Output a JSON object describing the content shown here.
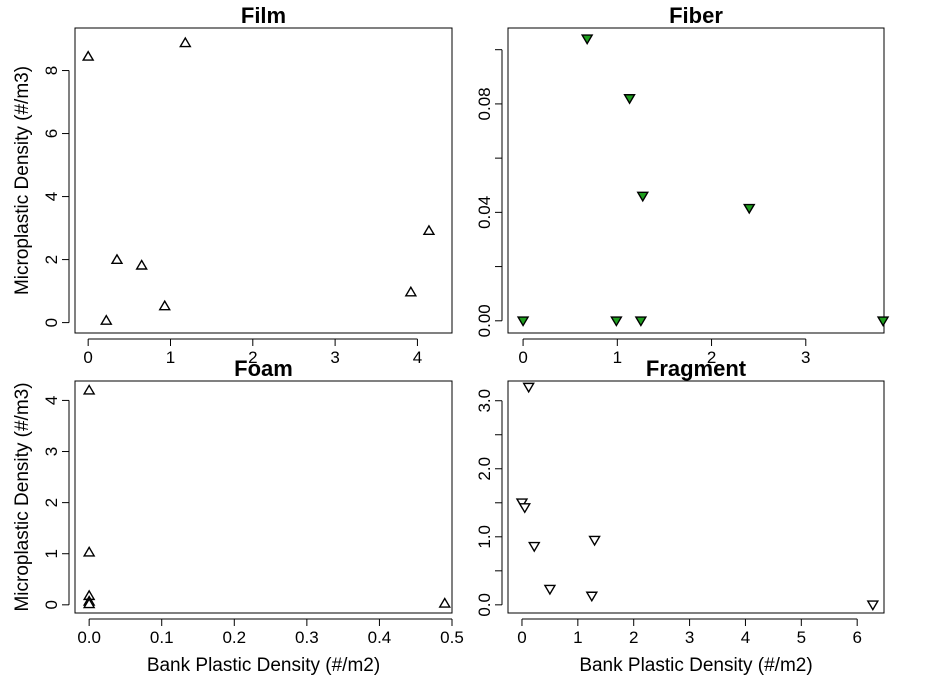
{
  "chart_data": [
    {
      "type": "scatter",
      "title": "Film",
      "ylabel": "Microplastic Density (#/m3)",
      "xlabel": "",
      "xlim": [
        -0.16,
        4.42
      ],
      "ylim": [
        -0.33,
        9.35
      ],
      "xticks": [
        0,
        1,
        2,
        3,
        4
      ],
      "xtick_labels": [
        "0",
        "1",
        "2",
        "3",
        "4"
      ],
      "yticks": [
        0,
        2,
        4,
        6,
        8
      ],
      "ytick_labels": [
        "0",
        "2",
        "4",
        "6",
        "8"
      ],
      "marker": "triangle-up",
      "marker_color": "#000000",
      "marker_fill": "#ffffff",
      "points": [
        {
          "x": 0.0,
          "y": 8.45
        },
        {
          "x": 1.18,
          "y": 8.88
        },
        {
          "x": 0.35,
          "y": 2.0
        },
        {
          "x": 0.65,
          "y": 1.82
        },
        {
          "x": 0.93,
          "y": 0.53
        },
        {
          "x": 0.22,
          "y": 0.07
        },
        {
          "x": 3.92,
          "y": 0.97
        },
        {
          "x": 4.14,
          "y": 2.92
        }
      ]
    },
    {
      "type": "scatter",
      "title": "Fiber",
      "ylabel": "",
      "xlabel": "",
      "xlim": [
        -0.16,
        3.83
      ],
      "ylim": [
        -0.0045,
        0.108
      ],
      "xticks": [
        0,
        1,
        2,
        3
      ],
      "xtick_labels": [
        "0",
        "1",
        "2",
        "3"
      ],
      "yticks": [
        0.0,
        0.04,
        0.08
      ],
      "ytick_labels": [
        "0.00",
        "0.04",
        "0.08"
      ],
      "extra_yticks": [
        0.02,
        0.06,
        0.1
      ],
      "marker": "triangle-down",
      "marker_color": "#000000",
      "marker_fill": "#1e9e1e",
      "points": [
        {
          "x": 0.0,
          "y": 0.0
        },
        {
          "x": 0.68,
          "y": 0.104
        },
        {
          "x": 1.13,
          "y": 0.082
        },
        {
          "x": 1.27,
          "y": 0.046
        },
        {
          "x": 2.4,
          "y": 0.0415
        },
        {
          "x": 0.99,
          "y": 0.0
        },
        {
          "x": 1.25,
          "y": 0.0
        },
        {
          "x": 3.82,
          "y": 0.0
        }
      ]
    },
    {
      "type": "scatter",
      "title": "Foam",
      "ylabel": "Microplastic Density (#/m3)",
      "xlabel": "Bank Plastic Density (#/m2)",
      "xlim": [
        -0.0195,
        0.5
      ],
      "ylim": [
        -0.16,
        4.38
      ],
      "xticks": [
        0,
        0.1,
        0.2,
        0.3,
        0.4,
        0.5
      ],
      "xtick_labels": [
        "0.0",
        "0.1",
        "0.2",
        "0.3",
        "0.4",
        "0.5"
      ],
      "yticks": [
        0,
        1,
        2,
        3,
        4
      ],
      "ytick_labels": [
        "0",
        "1",
        "2",
        "3",
        "4"
      ],
      "marker": "triangle-up",
      "marker_color": "#000000",
      "marker_fill": "#ffffff",
      "points": [
        {
          "x": 0.0,
          "y": 4.2
        },
        {
          "x": 0.0,
          "y": 1.03
        },
        {
          "x": 0.0,
          "y": 0.18
        },
        {
          "x": 0.0,
          "y": 0.07
        },
        {
          "x": 0.0,
          "y": 0.02
        },
        {
          "x": 0.49,
          "y": 0.03
        }
      ]
    },
    {
      "type": "scatter",
      "title": "Fragment",
      "ylabel": "",
      "xlabel": "Bank Plastic Density (#/m2)",
      "xlim": [
        -0.25,
        6.48
      ],
      "ylim": [
        -0.12,
        3.29
      ],
      "xticks": [
        0,
        1,
        2,
        3,
        4,
        5,
        6
      ],
      "xtick_labels": [
        "0",
        "1",
        "2",
        "3",
        "4",
        "5",
        "6"
      ],
      "yticks": [
        0.0,
        1.0,
        2.0,
        3.0
      ],
      "ytick_labels": [
        "0.0",
        "1.0",
        "2.0",
        "3.0"
      ],
      "extra_yticks": [
        0.5,
        1.5,
        2.5
      ],
      "marker": "triangle-down",
      "marker_color": "#000000",
      "marker_fill": "#ffffff",
      "points": [
        {
          "x": 0.12,
          "y": 3.2
        },
        {
          "x": 0.0,
          "y": 1.5
        },
        {
          "x": 0.05,
          "y": 1.43
        },
        {
          "x": 0.22,
          "y": 0.86
        },
        {
          "x": 1.3,
          "y": 0.95
        },
        {
          "x": 0.5,
          "y": 0.23
        },
        {
          "x": 1.25,
          "y": 0.13
        },
        {
          "x": 6.28,
          "y": 0.0
        }
      ]
    }
  ]
}
